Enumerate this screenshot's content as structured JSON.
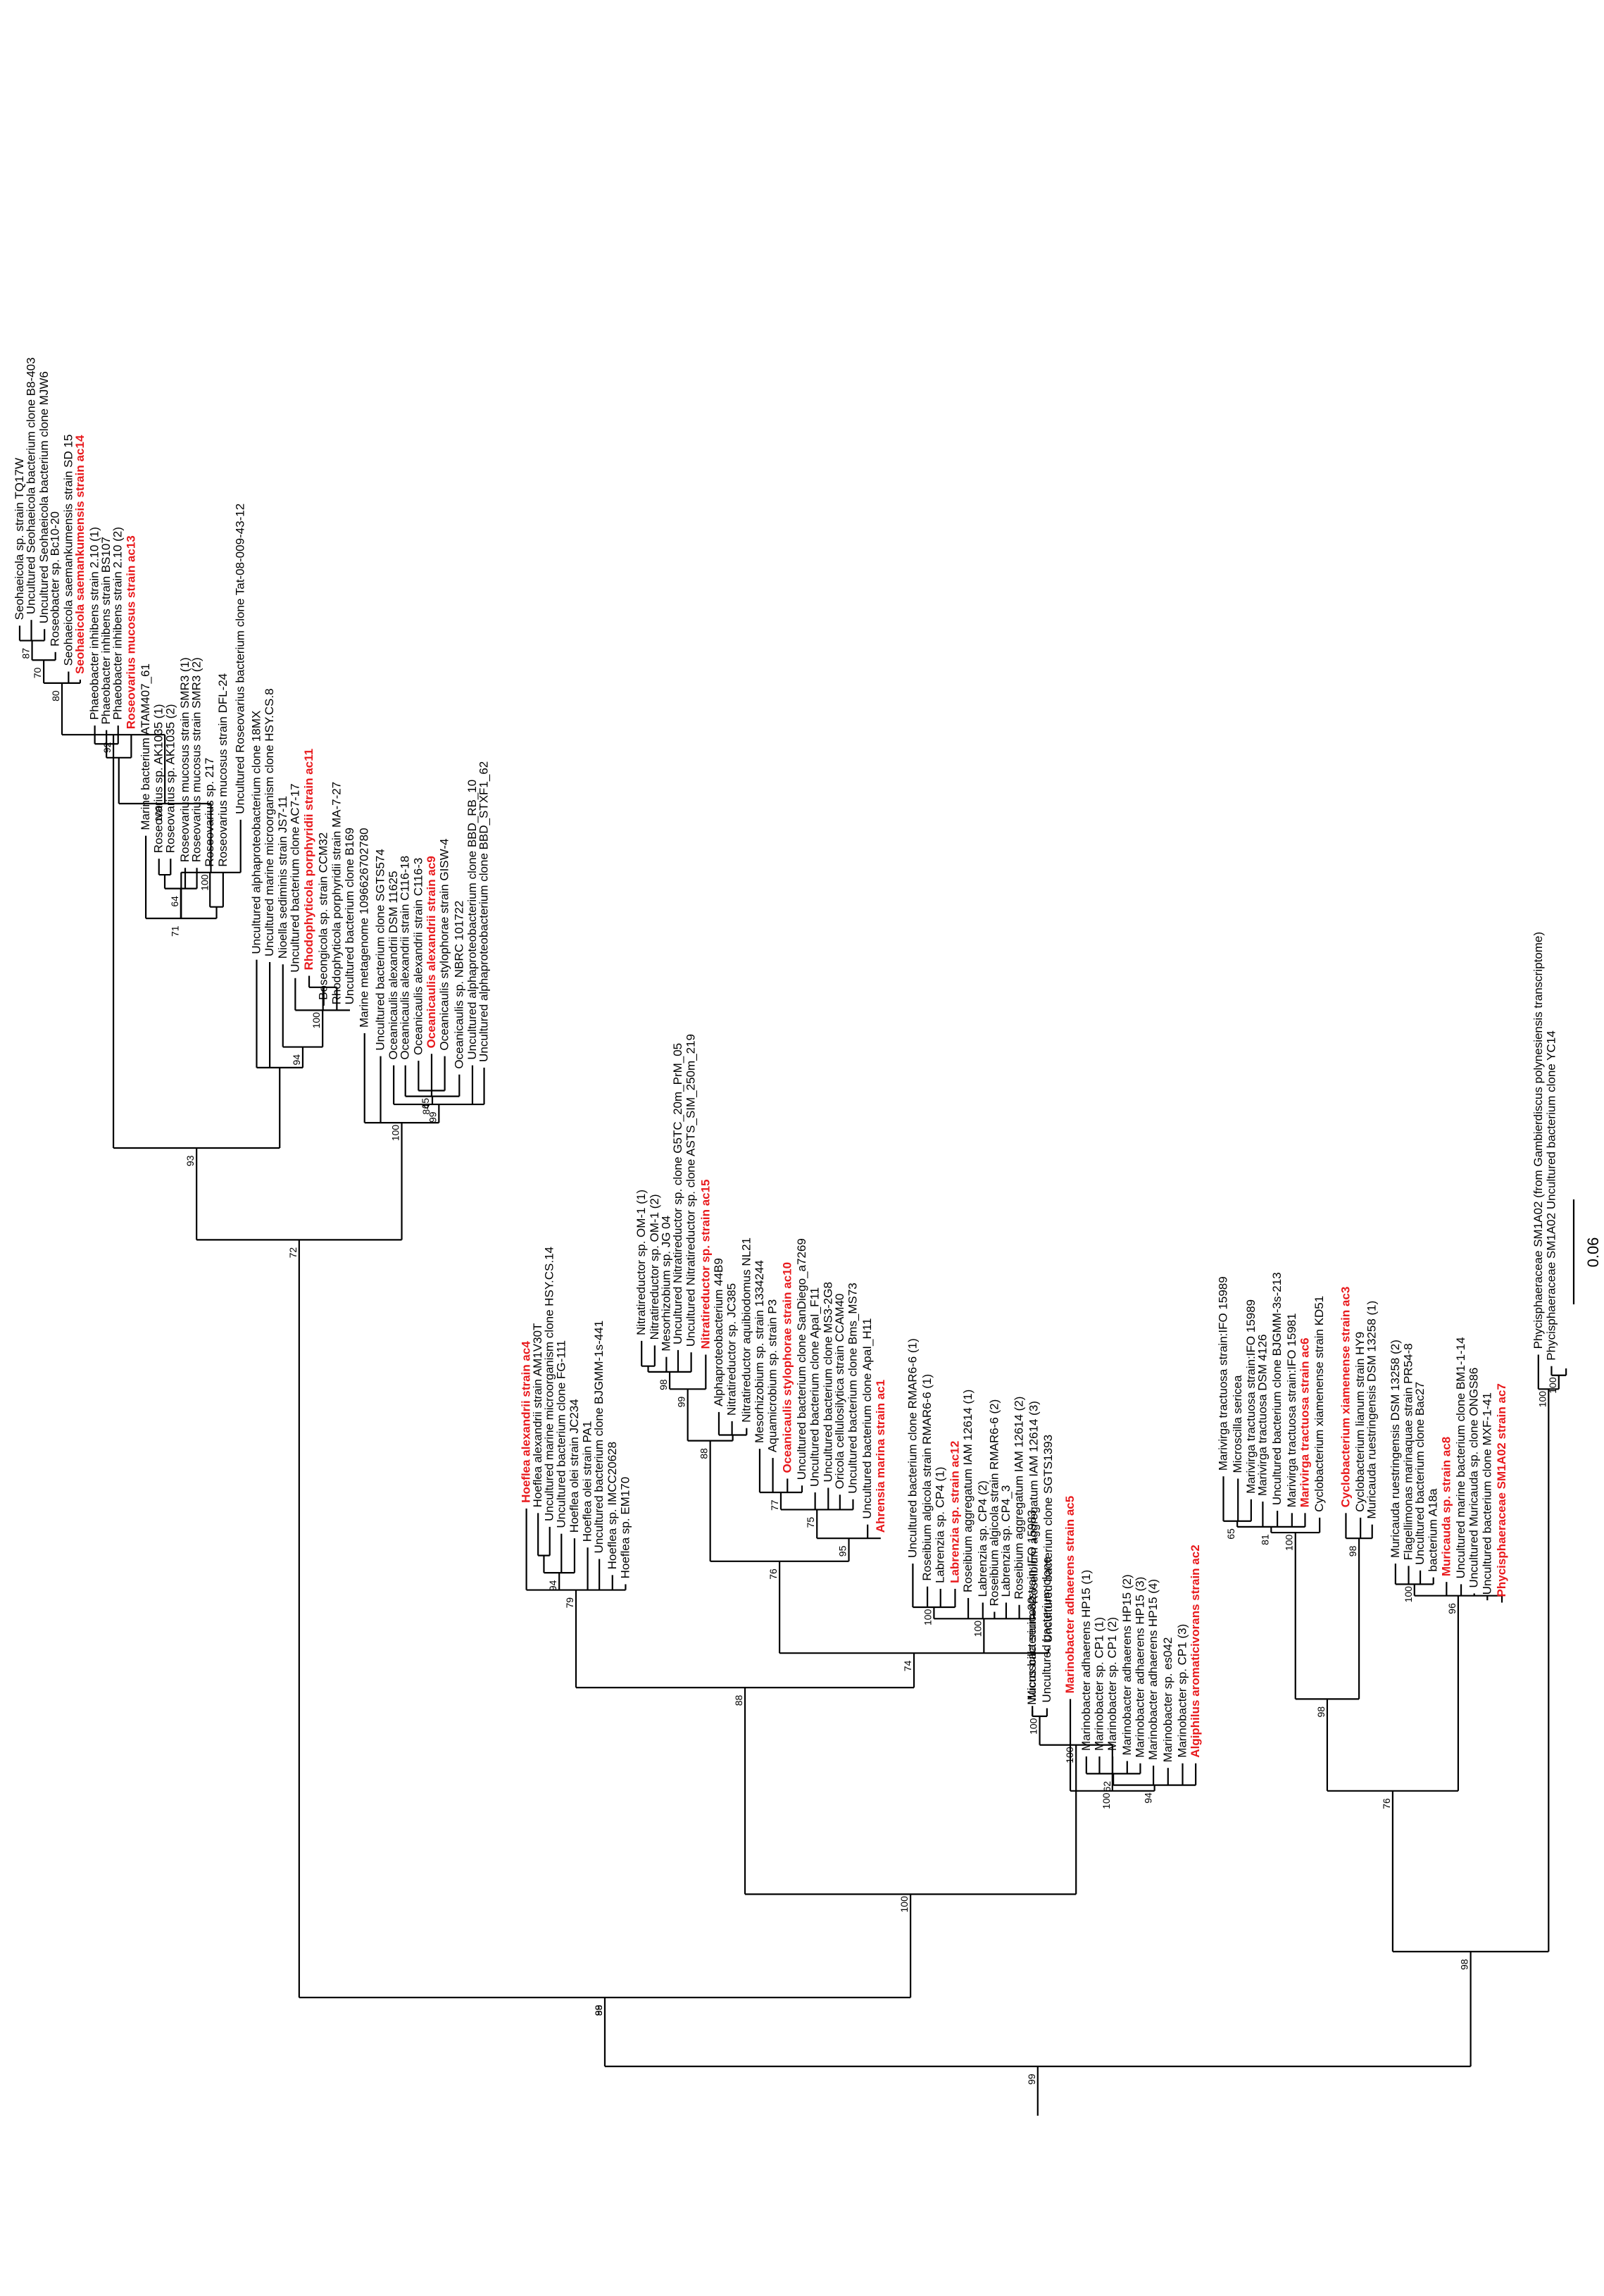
{
  "figure": {
    "scale_bar_label": "0.06",
    "highlight_color": "#e8191c"
  },
  "tree": [
    {
      "t": "Seohaeicola sp. strain TQ17W"
    },
    {
      "t": "Uncultured Seohaeicola bacterium clone B8-403"
    },
    {
      "t": "Uncultured Seohaeicola bacterium clone MJW6"
    },
    {
      "t": "Roseobacter sp. Bc10-20"
    },
    {
      "t": "Seohaeicola saemankumensis strain SD 15"
    },
    {
      "t": "Seohaeicola saemankumensis strain ac14",
      "h": true
    },
    {
      "t": "Phaeobacter inhibens strain 2.10 (1)"
    },
    {
      "t": "Phaeobacter inhibens strain BS107"
    },
    {
      "t": "Phaeobacter inhibens strain 2.10 (2)"
    },
    {
      "t": "Roseovarius mucosus strain ac13",
      "h": true
    },
    {
      "t": "Marine bacterium ATAM407_61"
    },
    {
      "t": "Roseovarius sp. AK1035 (1)"
    },
    {
      "t": "Roseovarius sp. AK1035 (2)"
    },
    {
      "t": "Roseovarius mucosus strain SMR3 (1)"
    },
    {
      "t": "Roseovarius mucosus strain SMR3 (2)"
    },
    {
      "t": "Roseovarius sp. 217"
    },
    {
      "t": "Roseovarius mucosus strain DFL-24"
    },
    {
      "t": "Uncultured Roseovarius bacterium clone Tat-08-009-43-12"
    },
    {
      "t": "Uncultured alphaproteobacterium clone 18MX"
    },
    {
      "t": "Uncultured marine microorganism clone HSY.CS.8"
    },
    {
      "t": "Nioella sediminis strain JS7-11"
    },
    {
      "t": "Uncultured bacterium clone AC7-17"
    },
    {
      "t": "Rhodophyticola porphyridii strain ac11",
      "h": true
    },
    {
      "t": "Boseongicola sp. strain CCM32"
    },
    {
      "t": "Rhodophyticola porphyridii strain MA-7-27"
    },
    {
      "t": "Uncultured bacterium clone B169"
    },
    {
      "t": "Marine metagenome 1096626702780"
    },
    {
      "t": "Uncultured bacterium clone SGTS574"
    },
    {
      "t": "Oceanicaulis alexandrii DSM 11625"
    },
    {
      "t": "Oceanicaulis alexandrii strain C116-18"
    },
    {
      "t": "Oceanicaulis alexandrii strain C116-3"
    },
    {
      "t": "Oceanicaulis alexandrii strain ac9",
      "h": true
    },
    {
      "t": "Oceanicaulis stylophorae strain GISW-4"
    },
    {
      "t": "Oceanicaulis sp. NBRC 101722"
    },
    {
      "t": "Uncultured alphaproteobacterium clone BBD_RB_10"
    },
    {
      "t": "Uncultured alphaproteobacterium clone BBD_STXF1_62"
    },
    {
      "t": "Hoeflea alexandrii strain ac4",
      "h": true
    },
    {
      "t": "Hoeflea alexandrii strain AM1V30T"
    },
    {
      "t": "Uncultured marine microorganism clone HSY.CS.14"
    },
    {
      "t": "Uncultured bacterium clone FG-111"
    },
    {
      "t": "Hoeflea olei strain JC234"
    },
    {
      "t": "Hoeflea olei strain PA1"
    },
    {
      "t": "Uncultured bacterium clone BJGMM-1s-441"
    },
    {
      "t": "Hoeflea sp. IMCC20628"
    },
    {
      "t": "Hoeflea sp. EM170"
    },
    {
      "t": "Nitratireductor sp. OM-1 (1)"
    },
    {
      "t": "Nitratireductor sp. OM-1 (2)"
    },
    {
      "t": "Mesorhizobium sp. JG 04"
    },
    {
      "t": "Uncultured Nitratireductor sp. clone G5TC_20m_PrM_05"
    },
    {
      "t": "Uncultured Nitratireductor sp. clone ASTS_SIM_250m_219"
    },
    {
      "t": "Nitratireductor sp. strain ac15",
      "h": true
    },
    {
      "t": "Alphaproteobacterium 44B9"
    },
    {
      "t": "Nitratireductor sp. JC385"
    },
    {
      "t": "Nitratireductor aquibiodomus NL21"
    },
    {
      "t": "Mesorhizobium sp. strain 1334244"
    },
    {
      "t": "Aquamicrobium sp. strain P3"
    },
    {
      "t": "Oceanicaulis stylophorae strain ac10",
      "h": true
    },
    {
      "t": "Uncultured bacterium clone SanDiego_a7269"
    },
    {
      "t": "Uncultured bacterium clone ApaI_F11"
    },
    {
      "t": "Uncultured bacterium clone MS3-2G8"
    },
    {
      "t": "Oricola cellulosilytica strain CCAM40"
    },
    {
      "t": "Uncultured bacterium clone Bms_MS73"
    },
    {
      "t": "Uncultured bacterium clone ApaI_H11"
    },
    {
      "t": "Ahrensia marina strain ac1",
      "h": true
    },
    {
      "t": "Uncultured bacterium clone RMAR6-6 (1)"
    },
    {
      "t": "Roseibium algicola strain RMAR6-6 (1)"
    },
    {
      "t": "Labrenzia sp. CP4 (1)"
    },
    {
      "t": "Labrenzia sp. strain ac12",
      "h": true
    },
    {
      "t": "Roseibium aggregatum IAM 12614 (1)"
    },
    {
      "t": "Labrenzia sp. CP4 (2)"
    },
    {
      "t": "Roseibium algicola strain RMAR6-6 (2)"
    },
    {
      "t": "Labrenzia sp. CP4_3"
    },
    {
      "t": "Roseibium aggregatum IAM 12614 (2)"
    },
    {
      "t": "Roseibium aggregatum IAM 12614 (3)"
    },
    {
      "t": "Uncultured bacterium clone SGTS1393"
    },
    {
      "t": "Marinobacter adhaerens strain ac5",
      "h": true
    },
    {
      "t": "Marinobacter adhaerens HP15 (1)"
    },
    {
      "t": "Marinobacter sp. CP1 (1)"
    },
    {
      "t": "Marinobacter sp. CP1 (2)"
    },
    {
      "t": "Marinobacter adhaerens HP15 (2)"
    },
    {
      "t": "Marinobacter adhaerens HP15 (3)"
    },
    {
      "t": "Marinobacter adhaerens HP15 (4)"
    },
    {
      "t": "Marinobacter sp. es042"
    },
    {
      "t": "Marinobacter sp. CP1 (3)"
    },
    {
      "t": "Algiphilus aromaticivorans strain ac2",
      "h": true
    },
    {
      "t": "Mucus bacterium 82"
    },
    {
      "t": "Uncultured bacterium clone"
    },
    {
      "t": "Microscilla sericea strain:IFO 15983"
    },
    {
      "t": "Marivirga tractuosa strain:IFO 15989"
    },
    {
      "t": "Microscilla sericea"
    },
    {
      "t": "Marivirga tractuosa strain:IFO 15989"
    },
    {
      "t": "Marivirga tractuosa DSM 4126"
    },
    {
      "t": "Uncultured bacterium clone BJGMM-3s-213"
    },
    {
      "t": "Marivirga tractuosa strain:IFO 15981"
    },
    {
      "t": "Marivirga tractuosa strain ac6",
      "h": true
    },
    {
      "t": "Cyclobacterium xiamenense strain KD51"
    },
    {
      "t": "Cyclobacterium xiamenense strain ac3",
      "h": true
    },
    {
      "t": "Cyclobacterium lianum strain HY9"
    },
    {
      "t": "Muricauda ruestringensis DSM 13258 (1)"
    },
    {
      "t": "Muricauda ruestringensis DSM 13258 (2)"
    },
    {
      "t": "Flagellimonas marinaquae strain PR54-8"
    },
    {
      "t": "Uncultured bacterium clone Bac27"
    },
    {
      "t": "bacterium A18a"
    },
    {
      "t": "Muricauda sp. strain ac8",
      "h": true
    },
    {
      "t": "Uncultured marine bacterium clone BM1-1-14"
    },
    {
      "t": "Uncultured Muricauda sp. clone ONGS86"
    },
    {
      "t": "Uncultured bacterium clone MXF-1-41"
    },
    {
      "t": "Phycisphaeraceae SM1A02 strain ac7",
      "h": true
    },
    {
      "t": "Phycisphaeraceae SM1A02 (from Gambierdiscus polynesiensis transcriptome)"
    },
    {
      "t": "Phycisphaeraceae SM1A02 Uncultured bacterium clone YC14"
    }
  ],
  "bootstraps": [
    "87",
    "70",
    "80",
    "92",
    "100",
    "100",
    "64",
    "71",
    "100",
    "93",
    "72",
    "88",
    "94",
    "100",
    "99",
    "84",
    "65",
    "79",
    "94",
    "100",
    "88",
    "74",
    "98",
    "99",
    "75",
    "77",
    "95",
    "88",
    "76",
    "100",
    "100",
    "94",
    "62",
    "100",
    "100",
    "100",
    "65",
    "81",
    "100",
    "98",
    "96",
    "100",
    "76",
    "98",
    "100",
    "100",
    "98",
    "99",
    "99"
  ]
}
